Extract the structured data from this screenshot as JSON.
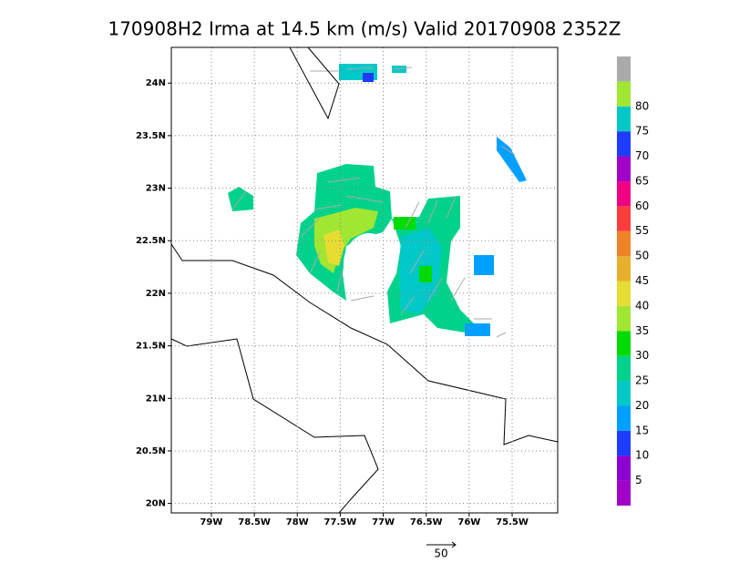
{
  "chart_data": {
    "type": "map",
    "title": "170908H2 Irma at 14.5 km (m/s) Valid 20170908 2352Z",
    "xlim": [
      -79.466,
      -74.97
    ],
    "ylim": [
      19.91,
      24.34
    ],
    "xticks": [
      {
        "value": -79,
        "label": "79W"
      },
      {
        "value": -78.5,
        "label": "78.5W"
      },
      {
        "value": -78,
        "label": "78W"
      },
      {
        "value": -77.5,
        "label": "77.5W"
      },
      {
        "value": -77,
        "label": "77W"
      },
      {
        "value": -76.5,
        "label": "76.5W"
      },
      {
        "value": -76,
        "label": "76W"
      },
      {
        "value": -75.5,
        "label": "75.5W"
      }
    ],
    "yticks": [
      {
        "value": 20,
        "label": "20N"
      },
      {
        "value": 20.5,
        "label": "20.5N"
      },
      {
        "value": 21,
        "label": "21N"
      },
      {
        "value": 21.5,
        "label": "21.5N"
      },
      {
        "value": 22,
        "label": "22N"
      },
      {
        "value": 22.5,
        "label": "22.5N"
      },
      {
        "value": 23,
        "label": "23N"
      },
      {
        "value": 23.5,
        "label": "23.5N"
      },
      {
        "value": 24,
        "label": "24N"
      }
    ],
    "grid": true,
    "colorbar": {
      "levels": [
        5,
        10,
        15,
        20,
        25,
        30,
        35,
        40,
        45,
        50,
        55,
        60,
        65,
        70,
        75,
        80
      ],
      "colors": [
        "#a000c8",
        "#8c00d2",
        "#1e3cff",
        "#00a0ff",
        "#00c8c8",
        "#00d28c",
        "#00dc00",
        "#a0e632",
        "#e6dc32",
        "#e6af2d",
        "#f08228",
        "#fa3c3c",
        "#f00082",
        "#a000c8",
        "#1e3cff",
        "#00c8c8",
        "#a0e632",
        "#aaaaaa"
      ]
    },
    "vector_key": "50"
  }
}
